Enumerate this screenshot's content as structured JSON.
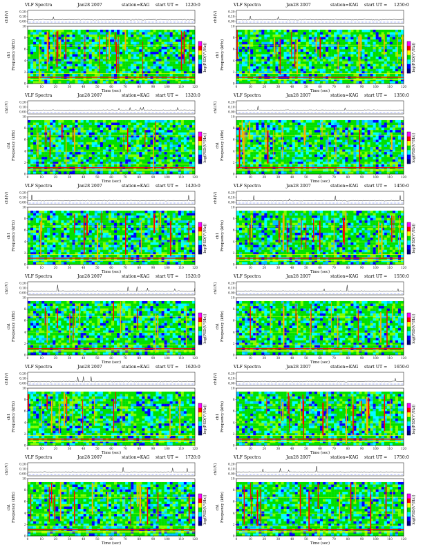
{
  "figure": {
    "title_label": "VLF Spectra",
    "date": "Jan28 2007",
    "station": "station=KAG",
    "start_prefix": "start UT ="
  },
  "colors": {
    "colormap": [
      "#ff00ff",
      "#ff0000",
      "#ffff00",
      "#00e000",
      "#00ffff",
      "#0000ff",
      "#000080"
    ],
    "background": "#ffffff",
    "amplitude_trace": "#000000"
  },
  "chart_data": [
    {
      "type": "heatmap",
      "title": "VLF Spectra  Jan28 2007  station=KAG  start UT =1220:0",
      "start_ut": "1220:0",
      "xlabel": "Time (sec)",
      "ylabel": "Frequency (kHz)",
      "channel_label": "ch1",
      "amp_label": "ch1(V)",
      "cbar_label": "log(PSD(V²/Hz))",
      "xlim": [
        0,
        120
      ],
      "ylim": [
        0,
        10
      ],
      "amp_ylim": [
        0,
        0.3
      ],
      "xticks": [
        0,
        10,
        20,
        30,
        40,
        50,
        60,
        70,
        80,
        90,
        100,
        110,
        120
      ],
      "yticks": [
        0,
        2,
        4,
        6,
        8,
        10
      ],
      "amp_ticks": [
        "0.20",
        "0.10",
        "0.00"
      ]
    },
    {
      "type": "heatmap",
      "title": "VLF Spectra  Jan28 2007  station=KAG  start UT =1250:0",
      "start_ut": "1250:0",
      "xlabel": "Time (sec)",
      "ylabel": "Frequency (kHz)",
      "channel_label": "ch1",
      "amp_label": "ch1(V)",
      "cbar_label": "log(PSD(V²/Hz))",
      "xlim": [
        0,
        120
      ],
      "ylim": [
        0,
        10
      ],
      "amp_ylim": [
        0,
        0.3
      ],
      "xticks": [
        0,
        10,
        20,
        30,
        40,
        50,
        60,
        70,
        80,
        90,
        100,
        110,
        120
      ],
      "yticks": [
        0,
        2,
        4,
        6,
        8,
        10
      ],
      "amp_ticks": [
        "0.20",
        "0.10",
        "0.00"
      ]
    },
    {
      "type": "heatmap",
      "title": "VLF Spectra  Jan28 2007  station=KAG  start UT =1320:0",
      "start_ut": "1320:0",
      "xlabel": "Time (sec)",
      "ylabel": "Frequency (kHz)",
      "channel_label": "ch1",
      "amp_label": "ch1(V)",
      "cbar_label": "log(PSD(V²/Hz))",
      "xlim": [
        0,
        120
      ],
      "ylim": [
        0,
        10
      ],
      "amp_ylim": [
        0,
        0.3
      ],
      "xticks": [
        0,
        10,
        20,
        30,
        40,
        50,
        60,
        70,
        80,
        90,
        100,
        110,
        120
      ],
      "yticks": [
        0,
        2,
        4,
        6,
        8,
        10
      ],
      "amp_ticks": [
        "0.20",
        "0.10",
        "0.00"
      ]
    },
    {
      "type": "heatmap",
      "title": "VLF Spectra  Jan28 2007  station=KAG  start UT =1350:0",
      "start_ut": "1350:0",
      "xlabel": "Time (sec)",
      "ylabel": "Frequency (kHz)",
      "channel_label": "ch1",
      "amp_label": "ch1(V)",
      "cbar_label": "log(PSD(V²/Hz))",
      "xlim": [
        0,
        120
      ],
      "ylim": [
        0,
        10
      ],
      "amp_ylim": [
        0,
        0.3
      ],
      "xticks": [
        0,
        10,
        20,
        30,
        40,
        50,
        60,
        70,
        80,
        90,
        100,
        110,
        120
      ],
      "yticks": [
        0,
        2,
        4,
        6,
        8,
        10
      ],
      "amp_ticks": [
        "0.20",
        "0.10",
        "0.00"
      ]
    },
    {
      "type": "heatmap",
      "title": "VLF Spectra  Jan28 2007  station=KAG  start UT =1420:0",
      "start_ut": "1420:0",
      "xlabel": "Time (sec)",
      "ylabel": "Frequency (kHz)",
      "channel_label": "ch1",
      "amp_label": "ch1(V)",
      "cbar_label": "log(PSD(V²/Hz))",
      "xlim": [
        0,
        120
      ],
      "ylim": [
        0,
        10
      ],
      "amp_ylim": [
        0,
        0.3
      ],
      "xticks": [
        0,
        10,
        20,
        30,
        40,
        50,
        60,
        70,
        80,
        90,
        100,
        110,
        120
      ],
      "yticks": [
        0,
        2,
        4,
        6,
        8,
        10
      ],
      "amp_ticks": [
        "0.20",
        "0.10",
        "0.00"
      ]
    },
    {
      "type": "heatmap",
      "title": "VLF Spectra  Jan28 2007  station=KAG  start UT =1450:0",
      "start_ut": "1450:0",
      "xlabel": "Time (sec)",
      "ylabel": "Frequency (kHz)",
      "channel_label": "ch1",
      "amp_label": "ch1(V)",
      "cbar_label": "log(PSD(V²/Hz))",
      "xlim": [
        0,
        120
      ],
      "ylim": [
        0,
        10
      ],
      "amp_ylim": [
        0,
        0.3
      ],
      "xticks": [
        0,
        10,
        20,
        30,
        40,
        50,
        60,
        70,
        80,
        90,
        100,
        110,
        120
      ],
      "yticks": [
        0,
        2,
        4,
        6,
        8,
        10
      ],
      "amp_ticks": [
        "0.20",
        "0.10",
        "0.00"
      ]
    },
    {
      "type": "heatmap",
      "title": "VLF Spectra  Jan28 2007  station=KAG  start UT =1520:0",
      "start_ut": "1520:0",
      "xlabel": "Time (sec)",
      "ylabel": "Frequency (kHz)",
      "channel_label": "ch1",
      "amp_label": "ch1(V)",
      "cbar_label": "log(PSD(V²/Hz))",
      "xlim": [
        0,
        120
      ],
      "ylim": [
        0,
        10
      ],
      "amp_ylim": [
        0,
        0.3
      ],
      "xticks": [
        0,
        10,
        20,
        30,
        40,
        50,
        60,
        70,
        80,
        90,
        100,
        110,
        120
      ],
      "yticks": [
        0,
        2,
        4,
        6,
        8,
        10
      ],
      "amp_ticks": [
        "0.20",
        "0.10",
        "0.00"
      ]
    },
    {
      "type": "heatmap",
      "title": "VLF Spectra  Jan28 2007  station=KAG  start UT =1550:0",
      "start_ut": "1550:0",
      "xlabel": "Time (sec)",
      "ylabel": "Frequency (kHz)",
      "channel_label": "ch1",
      "amp_label": "ch1(V)",
      "cbar_label": "log(PSD(V²/Hz))",
      "xlim": [
        0,
        120
      ],
      "ylim": [
        0,
        10
      ],
      "amp_ylim": [
        0,
        0.3
      ],
      "xticks": [
        0,
        10,
        20,
        30,
        40,
        50,
        60,
        70,
        80,
        90,
        100,
        110,
        120
      ],
      "yticks": [
        0,
        2,
        4,
        6,
        8,
        10
      ],
      "amp_ticks": [
        "0.20",
        "0.10",
        "0.00"
      ]
    },
    {
      "type": "heatmap",
      "title": "VLF Spectra  Jan28 2007  station=KAG  start UT =1620:0",
      "start_ut": "1620:0",
      "xlabel": "Time (sec)",
      "ylabel": "Frequency (kHz)",
      "channel_label": "ch1",
      "amp_label": "ch1(V)",
      "cbar_label": "log(PSD(V²/Hz))",
      "xlim": [
        0,
        120
      ],
      "ylim": [
        0,
        10
      ],
      "amp_ylim": [
        0,
        0.3
      ],
      "xticks": [
        0,
        10,
        20,
        30,
        40,
        50,
        60,
        70,
        80,
        90,
        100,
        110,
        120
      ],
      "yticks": [
        0,
        2,
        4,
        6,
        8,
        10
      ],
      "amp_ticks": [
        "0.20",
        "0.10",
        "0.00"
      ]
    },
    {
      "type": "heatmap",
      "title": "VLF Spectra  Jan28 2007  station=KAG  start UT =1650:0",
      "start_ut": "1650:0",
      "xlabel": "Time (sec)",
      "ylabel": "Frequency (kHz)",
      "channel_label": "ch1",
      "amp_label": "ch1(V)",
      "cbar_label": "log(PSD(V²/Hz))",
      "xlim": [
        0,
        120
      ],
      "ylim": [
        0,
        10
      ],
      "amp_ylim": [
        0,
        0.3
      ],
      "xticks": [
        0,
        10,
        20,
        30,
        40,
        50,
        60,
        70,
        80,
        90,
        100,
        110,
        120
      ],
      "yticks": [
        0,
        2,
        4,
        6,
        8,
        10
      ],
      "amp_ticks": [
        "0.20",
        "0.10",
        "0.00"
      ]
    },
    {
      "type": "heatmap",
      "title": "VLF Spectra  Jan28 2007  station=KAG  start UT =1720:0",
      "start_ut": "1720:0",
      "xlabel": "Time (sec)",
      "ylabel": "Frequency (kHz)",
      "channel_label": "ch1",
      "amp_label": "ch1(V)",
      "cbar_label": "log(PSD(V²/Hz))",
      "xlim": [
        0,
        120
      ],
      "ylim": [
        0,
        10
      ],
      "amp_ylim": [
        0,
        0.3
      ],
      "xticks": [
        0,
        10,
        20,
        30,
        40,
        50,
        60,
        70,
        80,
        90,
        100,
        110,
        120
      ],
      "yticks": [
        0,
        2,
        4,
        6,
        8,
        10
      ],
      "amp_ticks": [
        "0.20",
        "0.10",
        "0.00"
      ]
    },
    {
      "type": "heatmap",
      "title": "VLF Spectra  Jan28 2007  station=KAG  start UT =1750:0",
      "start_ut": "1750:0",
      "xlabel": "Time (sec)",
      "ylabel": "Frequency (kHz)",
      "channel_label": "ch1",
      "amp_label": "ch1(V)",
      "cbar_label": "log(PSD(V²/Hz))",
      "xlim": [
        0,
        120
      ],
      "ylim": [
        0,
        10
      ],
      "amp_ylim": [
        0,
        0.3
      ],
      "xticks": [
        0,
        10,
        20,
        30,
        40,
        50,
        60,
        70,
        80,
        90,
        100,
        110,
        120
      ],
      "yticks": [
        0,
        2,
        4,
        6,
        8,
        10
      ],
      "amp_ticks": [
        "0.20",
        "0.10",
        "0.00"
      ]
    }
  ]
}
